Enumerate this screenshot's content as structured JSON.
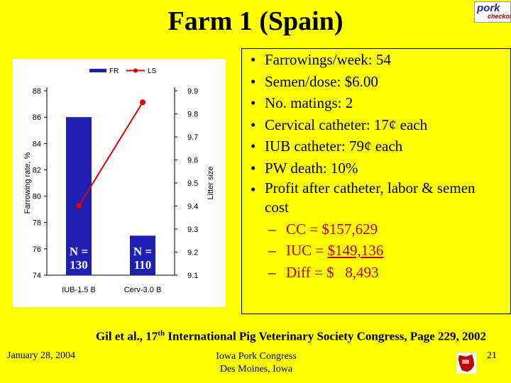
{
  "title": "Farm 1 (Spain)",
  "logo": {
    "line1": "pork",
    "line2": "checkoff"
  },
  "chart_data": {
    "type": "bar+line",
    "categories": [
      "IUB-1.5 B",
      "Cerv-3.0 B"
    ],
    "legend": [
      "FR",
      "LS"
    ],
    "series": [
      {
        "name": "FR",
        "type": "bar",
        "axis": "left",
        "values": [
          86,
          77
        ],
        "color": "#1f1fb4"
      },
      {
        "name": "LS",
        "type": "line",
        "axis": "right",
        "values": [
          9.4,
          9.85
        ],
        "color": "#e00000"
      }
    ],
    "ylabel": "Farrowing rate, %",
    "y2label": "Litter size",
    "ylim": [
      74,
      88
    ],
    "y2lim": [
      9.1,
      9.9
    ],
    "yticks": [
      74,
      76,
      78,
      80,
      82,
      84,
      86,
      88
    ],
    "y2ticks": [
      9.1,
      9.2,
      9.3,
      9.4,
      9.5,
      9.6,
      9.7,
      9.8,
      9.9
    ],
    "annotations": [
      {
        "line1": "N =",
        "line2": "130"
      },
      {
        "line1": "N =",
        "line2": "110"
      }
    ]
  },
  "bullets": [
    "Farrowings/week: 54",
    "Semen/dose: $6.00",
    "No. matings: 2",
    "Cervical catheter: 17¢ each",
    "IUB catheter: 79¢ each",
    "PW death: 10%",
    "Profit after catheter, labor & semen cost"
  ],
  "sub_bullets": [
    {
      "label": "CC = ",
      "value": "$157,629"
    },
    {
      "label": "IUC = ",
      "value": "$149,136"
    },
    {
      "label": "Diff = ",
      "value": "$   8,493"
    }
  ],
  "citation": {
    "pre": "Gil et al., 17",
    "sup": "th",
    "post": " International Pig Veterinary Society Congress, Page 229, 2002"
  },
  "footer": {
    "date": "January 28, 2004",
    "event_line1": "Iowa Pork Congress",
    "event_line2": "Des Moines, Iowa",
    "page": "21"
  },
  "colors": {
    "background": "#ffff00",
    "bar": "#1f1fb4",
    "line": "#e00000",
    "accent_text": "#c00000"
  }
}
